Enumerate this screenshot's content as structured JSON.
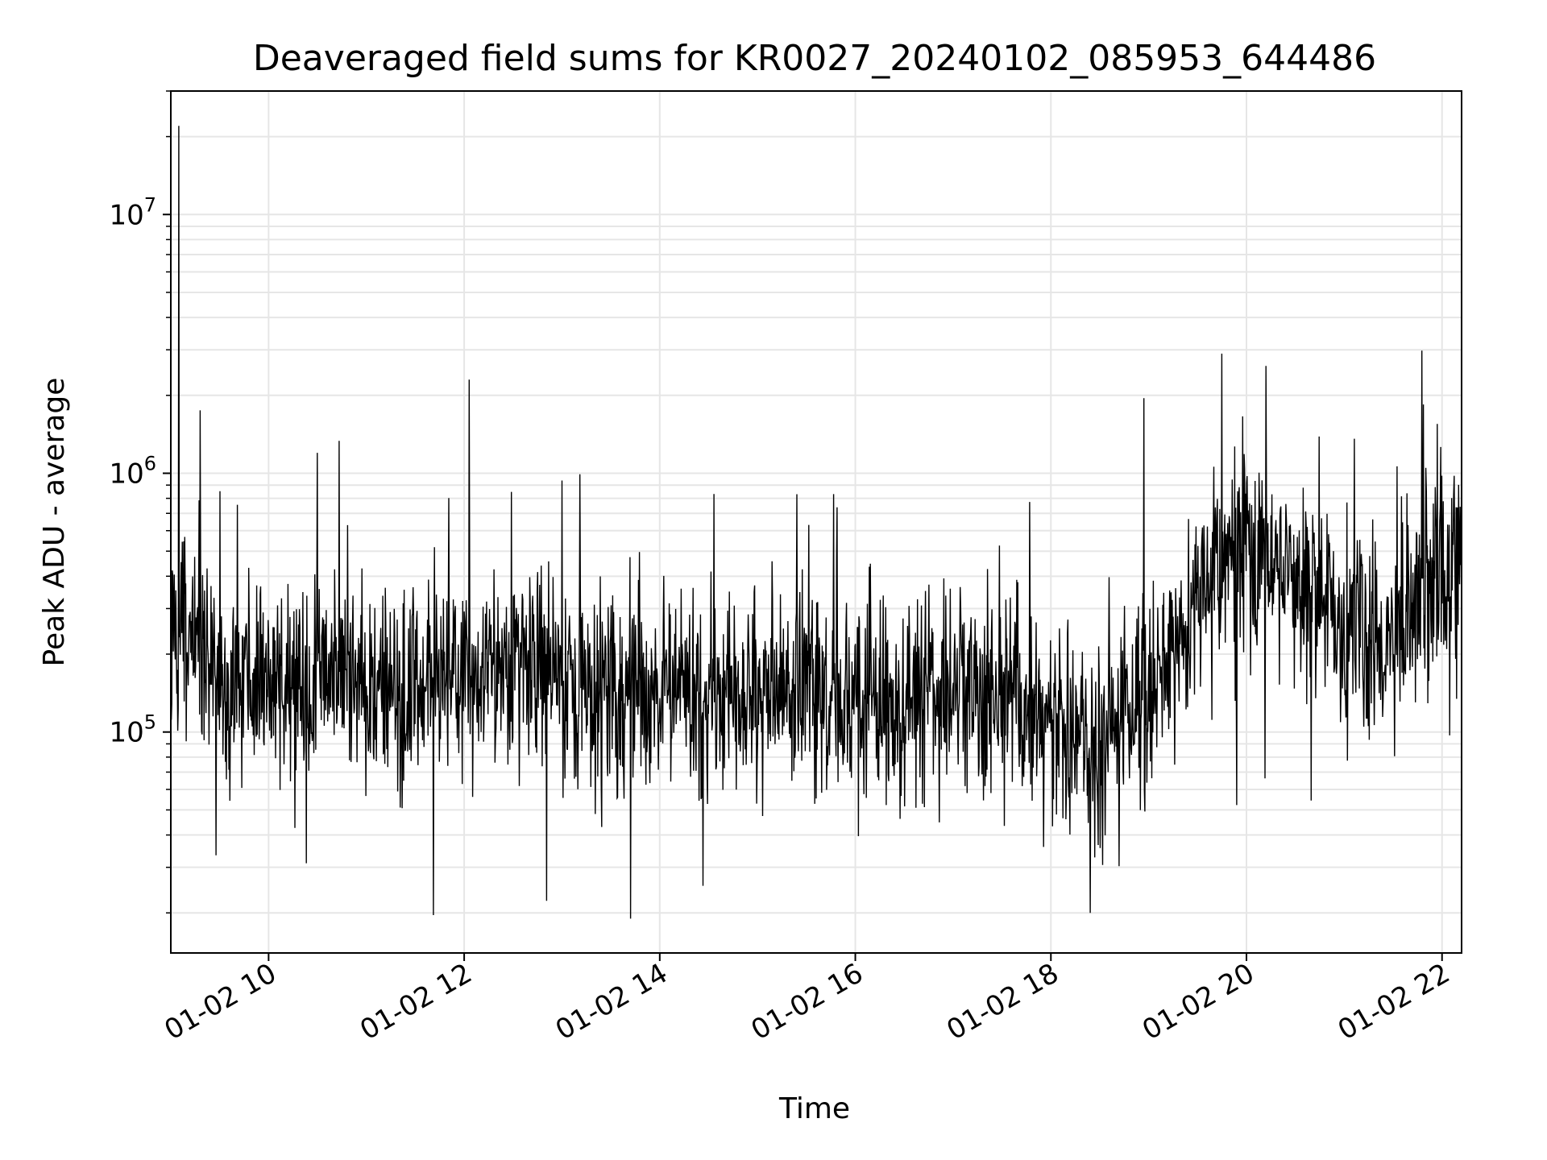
{
  "chart_data": {
    "type": "line",
    "title": "Deaveraged field sums for KR0027_20240102_085953_644486",
    "xlabel": "Time",
    "ylabel": "Peak ADU - average",
    "y_scale": "log",
    "ylim": [
      14000,
      30000000
    ],
    "xlim": [
      "01-02 09:00",
      "01-02 22:12"
    ],
    "grid": true,
    "line_color": "#000000",
    "grid_color": "#e6e6e6",
    "x_ticks": [
      "01-02 10",
      "01-02 12",
      "01-02 14",
      "01-02 16",
      "01-02 18",
      "01-02 20",
      "01-02 22"
    ],
    "y_ticks": [
      {
        "base": "10",
        "exp": "5"
      },
      {
        "base": "10",
        "exp": "6"
      },
      {
        "base": "10",
        "exp": "7"
      }
    ],
    "series": [
      {
        "x": [
          "01-02 09:00",
          "01-02 09:30",
          "01-02 10:00",
          "01-02 10:30",
          "01-02 11:00",
          "01-02 11:30",
          "01-02 12:00",
          "01-02 12:30",
          "01-02 13:00",
          "01-02 13:30",
          "01-02 14:00",
          "01-02 14:30",
          "01-02 15:00",
          "01-02 15:30",
          "01-02 16:00",
          "01-02 16:30",
          "01-02 17:00",
          "01-02 17:30",
          "01-02 18:00",
          "01-02 18:30",
          "01-02 19:00",
          "01-02 19:30",
          "01-02 20:00",
          "01-02 20:30",
          "01-02 21:00",
          "01-02 21:30",
          "01-02 22:00"
        ],
        "y": [
          300000,
          180000,
          140000,
          170000,
          150000,
          140000,
          150000,
          170000,
          160000,
          140000,
          150000,
          140000,
          140000,
          135000,
          130000,
          130000,
          150000,
          140000,
          130000,
          90000,
          120000,
          350000,
          550000,
          400000,
          260000,
          250000,
          420000
        ]
      }
    ]
  }
}
